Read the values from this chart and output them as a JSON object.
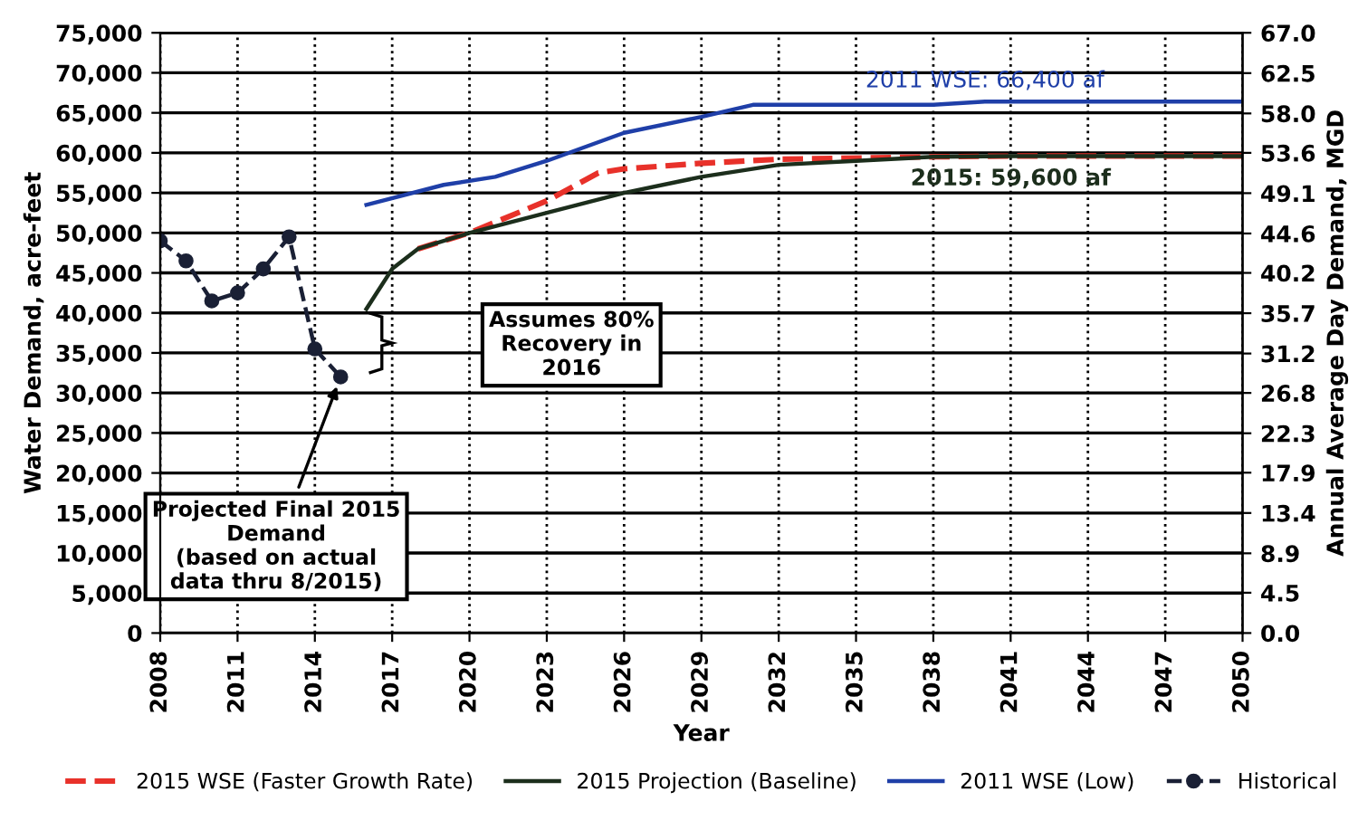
{
  "chart_data": {
    "type": "line",
    "xlabel": "Year",
    "ylabel": "Water Demand, acre-feet",
    "y2label": "Annual Average Day Demand, MGD",
    "xlim": [
      2008,
      2050
    ],
    "xticks": [
      2008,
      2011,
      2014,
      2017,
      2020,
      2023,
      2026,
      2029,
      2032,
      2035,
      2038,
      2041,
      2044,
      2047,
      2050
    ],
    "ylim": [
      0,
      75000
    ],
    "yticks": [
      {
        "value": 0,
        "label": "0"
      },
      {
        "value": 5000,
        "label": "5,000"
      },
      {
        "value": 10000,
        "label": "10,000"
      },
      {
        "value": 15000,
        "label": "15,000"
      },
      {
        "value": 20000,
        "label": "20,000"
      },
      {
        "value": 25000,
        "label": "25,000"
      },
      {
        "value": 30000,
        "label": "30,000"
      },
      {
        "value": 35000,
        "label": "35,000"
      },
      {
        "value": 40000,
        "label": "40,000"
      },
      {
        "value": 45000,
        "label": "45,000"
      },
      {
        "value": 50000,
        "label": "50,000"
      },
      {
        "value": 55000,
        "label": "55,000"
      },
      {
        "value": 60000,
        "label": "60,000"
      },
      {
        "value": 65000,
        "label": "65,000"
      },
      {
        "value": 70000,
        "label": "70,000"
      },
      {
        "value": 75000,
        "label": "75,000"
      }
    ],
    "y2lim": [
      0,
      67.0
    ],
    "y2ticks": [
      {
        "value": 0,
        "label": "0.0"
      },
      {
        "value": 4.5,
        "label": "4.5"
      },
      {
        "value": 8.9,
        "label": "8.9"
      },
      {
        "value": 13.4,
        "label": "13.4"
      },
      {
        "value": 17.9,
        "label": "17.9"
      },
      {
        "value": 22.3,
        "label": "22.3"
      },
      {
        "value": 26.8,
        "label": "26.8"
      },
      {
        "value": 31.2,
        "label": "31.2"
      },
      {
        "value": 35.7,
        "label": "35.7"
      },
      {
        "value": 40.2,
        "label": "40.2"
      },
      {
        "value": 44.6,
        "label": "44.6"
      },
      {
        "value": 49.1,
        "label": "49.1"
      },
      {
        "value": 53.6,
        "label": "53.6"
      },
      {
        "value": 58.0,
        "label": "58.0"
      },
      {
        "value": 62.5,
        "label": "62.5"
      },
      {
        "value": 67.0,
        "label": "67.0"
      }
    ],
    "grid": true,
    "legend": "bottom",
    "series": [
      {
        "name": "2015 WSE (Faster Growth Rate)",
        "color": "#e8312a",
        "line_style": "dashed",
        "x": [
          2018,
          2020,
          2023,
          2025,
          2026,
          2029,
          2032,
          2038,
          2041,
          2050
        ],
        "values": [
          48000,
          50000,
          54000,
          57500,
          58000,
          58700,
          59200,
          59500,
          59600,
          59600
        ]
      },
      {
        "name": "2015 Projection (Baseline)",
        "color": "#1c2e1c",
        "line_style": "solid",
        "x": [
          2016,
          2017,
          2018,
          2020,
          2023,
          2026,
          2029,
          2032,
          2035,
          2038,
          2041,
          2050
        ],
        "values": [
          40500,
          45500,
          48000,
          50000,
          52500,
          55000,
          57000,
          58500,
          59000,
          59500,
          59600,
          59600
        ]
      },
      {
        "name": "2011 WSE (Low)",
        "color": "#1f3fa8",
        "line_style": "solid",
        "x": [
          2016,
          2019,
          2021,
          2023,
          2026,
          2029,
          2031,
          2038,
          2040,
          2050
        ],
        "values": [
          53500,
          56000,
          57000,
          59000,
          62500,
          64500,
          66000,
          66000,
          66400,
          66400
        ]
      },
      {
        "name": "Historical",
        "color": "#1a2035",
        "line_style": "dashed",
        "marker": "circle",
        "x": [
          2008,
          2009,
          2010,
          2011,
          2012,
          2013,
          2014,
          2015
        ],
        "values": [
          49000,
          46500,
          41500,
          42500,
          45500,
          49500,
          35500,
          32000
        ]
      }
    ],
    "annotations": [
      {
        "text": "2011 WSE: 66,400 af",
        "x": 2040,
        "y": 66400
      },
      {
        "text": "2015: 59,600 af",
        "x": 2041,
        "y": 59600
      },
      "Assumes 80%\nRecovery in\n2016",
      {
        "text": "Projected Final 2015\nDemand\n(based on actual\ndata thru 8/2015)",
        "x": 2015,
        "y": 32000
      }
    ]
  }
}
